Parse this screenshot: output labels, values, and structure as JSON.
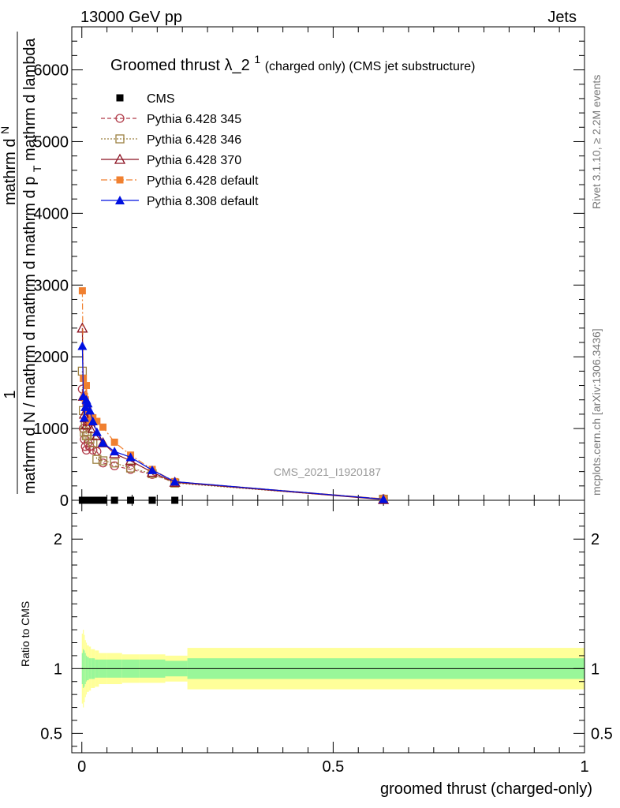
{
  "header": {
    "left": "13000 GeV pp",
    "right": "Jets"
  },
  "side_labels": {
    "rivet": "Rivet 3.1.10, ≥ 2.2M events",
    "mcplots": "mcplots.cern.ch [arXiv:1306.3436]"
  },
  "watermark": "CMS_2021_I1920187",
  "main": {
    "title_main": "Groomed thrust",
    "title_lambda": "λ_2",
    "title_sup": "1",
    "title_extra": " (charged only) (CMS jet substructure)",
    "ylabel_one": "1",
    "ylabel_num_line1": "mathrm d",
    "ylabel_num_N": "N",
    "ylabel_num_line2": "mathrm d p",
    "ylabel_num_T": "T",
    "ylabel_num_line3": " mathrm d lambda",
    "ylabel_den": "mathrm d N / mathrm d mathrm d",
    "ylabel_mid": "mathrm d p"
  },
  "ratio": {
    "ylabel": "Ratio to CMS"
  },
  "xlabel": "groomed thrust (charged-only)",
  "colors": {
    "cms": "#000000",
    "py345": "#b03a48",
    "py346": "#9c8040",
    "py370": "#8b1020",
    "py6def": "#f08030",
    "py8def": "#0010e0",
    "band_inner": "#99f799",
    "band_outer": "#ffff99"
  },
  "chart_data": {
    "type": "line",
    "x_range": [
      -0.02,
      1.0
    ],
    "main_y_range": [
      0,
      6600
    ],
    "main_y_ticks": [
      0,
      1000,
      2000,
      3000,
      4000,
      5000,
      6000
    ],
    "ratio_y_range": [
      0.35,
      2.3
    ],
    "ratio_y_ticks": [
      0.5,
      1,
      2
    ],
    "x_ticks": [
      0,
      0.5,
      1
    ],
    "legend": [
      "CMS",
      "Pythia 6.428 345",
      "Pythia 6.428 346",
      "Pythia 6.428 370",
      "Pythia 6.428 default",
      "Pythia 8.308 default"
    ],
    "series": [
      {
        "name": "CMS",
        "x": [
          0.001,
          0.003,
          0.005,
          0.007,
          0.009,
          0.012,
          0.016,
          0.022,
          0.03,
          0.042,
          0.065,
          0.097,
          0.14,
          0.185
        ],
        "y": [
          0,
          0,
          0,
          0,
          0,
          0,
          0,
          0,
          0,
          0,
          0,
          0,
          0,
          0
        ]
      },
      {
        "name": "Pythia 6.428 345",
        "x": [
          0.001,
          0.003,
          0.005,
          0.007,
          0.009,
          0.012,
          0.016,
          0.022,
          0.03,
          0.042,
          0.065,
          0.097,
          0.14,
          0.185,
          0.6
        ],
        "y": [
          1550,
          1000,
          850,
          750,
          700,
          800,
          750,
          700,
          680,
          520,
          480,
          430,
          360,
          250,
          20
        ]
      },
      {
        "name": "Pythia 6.428 346",
        "x": [
          0.001,
          0.003,
          0.005,
          0.007,
          0.009,
          0.012,
          0.016,
          0.022,
          0.03,
          0.042,
          0.065,
          0.097,
          0.14,
          0.185,
          0.6
        ],
        "y": [
          1800,
          1250,
          950,
          1050,
          900,
          900,
          850,
          800,
          570,
          550,
          520,
          450,
          370,
          240,
          15
        ]
      },
      {
        "name": "Pythia 6.428 370",
        "x": [
          0.001,
          0.003,
          0.005,
          0.007,
          0.009,
          0.012,
          0.016,
          0.022,
          0.03,
          0.042,
          0.065,
          0.097,
          0.14,
          0.185,
          0.6
        ],
        "y": [
          2400,
          1450,
          1200,
          1150,
          1050,
          1200,
          1100,
          1000,
          900,
          800,
          650,
          550,
          390,
          250,
          10
        ]
      },
      {
        "name": "Pythia 6.428 default",
        "x": [
          0.001,
          0.003,
          0.005,
          0.007,
          0.009,
          0.012,
          0.016,
          0.022,
          0.03,
          0.042,
          0.065,
          0.097,
          0.14,
          0.185,
          0.6
        ],
        "y": [
          2920,
          1700,
          1450,
          1400,
          1600,
          1250,
          1100,
          1150,
          1100,
          1020,
          810,
          630,
          430,
          260,
          20
        ]
      },
      {
        "name": "Pythia 8.308 default",
        "x": [
          0.001,
          0.003,
          0.005,
          0.007,
          0.009,
          0.012,
          0.016,
          0.022,
          0.03,
          0.042,
          0.065,
          0.097,
          0.14,
          0.185,
          0.6
        ],
        "y": [
          2150,
          1450,
          1150,
          1300,
          1400,
          1350,
          1250,
          1100,
          950,
          800,
          680,
          600,
          420,
          260,
          15
        ]
      }
    ],
    "ratio_band": {
      "x_edges": [
        0,
        0.002,
        0.004,
        0.006,
        0.008,
        0.01,
        0.014,
        0.018,
        0.026,
        0.034,
        0.05,
        0.08,
        0.114,
        0.166,
        0.21,
        1.0
      ],
      "inner": [
        0.12,
        0.15,
        0.14,
        0.12,
        0.1,
        0.09,
        0.08,
        0.08,
        0.07,
        0.07,
        0.07,
        0.07,
        0.07,
        0.06,
        0.08
      ],
      "outer": [
        0.27,
        0.3,
        0.26,
        0.22,
        0.2,
        0.18,
        0.17,
        0.15,
        0.14,
        0.12,
        0.12,
        0.11,
        0.11,
        0.1,
        0.16
      ]
    }
  }
}
